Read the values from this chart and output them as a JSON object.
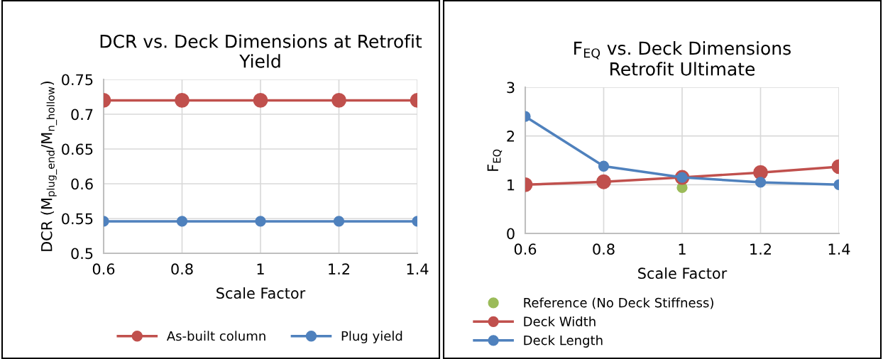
{
  "chart_data": [
    {
      "type": "line",
      "title": "DCR vs. Deck Dimensions at Retrofit\nYield",
      "xlabel": "Scale Factor",
      "ylabel": "DCR (M$_{plug_end}$/M$_{n_hollow}$)",
      "x": [
        0.6,
        0.8,
        1,
        1.2,
        1.4
      ],
      "series": [
        {
          "name": "As-built column",
          "color": "#c0504d",
          "values": [
            0.72,
            0.72,
            0.72,
            0.72,
            0.72
          ]
        },
        {
          "name": "Plug yield",
          "color": "#4f81bd",
          "values": [
            0.546,
            0.546,
            0.546,
            0.546,
            0.546
          ]
        }
      ],
      "xlim": [
        0.6,
        1.4
      ],
      "xticks": [
        0.6,
        0.8,
        1,
        1.2,
        1.4
      ],
      "ylim": [
        0.5,
        0.75
      ],
      "yticks": [
        0.5,
        0.55,
        0.6,
        0.65,
        0.7,
        0.75
      ],
      "grid": true,
      "legend": "bottom",
      "marker": "circle",
      "line_style": "solid"
    },
    {
      "type": "line",
      "title": "F$_{EQ}$ vs. Deck Dimensions\nRetrofit Ultimate",
      "xlabel": "Scale Factor",
      "ylabel": "F$_{EQ}$",
      "x": [
        0.6,
        0.8,
        1,
        1.2,
        1.4
      ],
      "series": [
        {
          "name": "Reference (No Deck Stiffness)",
          "color": "#9bbb59",
          "type": "scatter",
          "x": [
            1
          ],
          "values": [
            0.94
          ]
        },
        {
          "name": "Deck Width",
          "color": "#c0504d",
          "values": [
            1.0,
            1.06,
            1.15,
            1.25,
            1.37
          ]
        },
        {
          "name": "Deck Length",
          "color": "#4f81bd",
          "values": [
            2.4,
            1.38,
            1.15,
            1.05,
            1.0
          ]
        }
      ],
      "xlim": [
        0.6,
        1.4
      ],
      "xticks": [
        0.6,
        0.8,
        1,
        1.2,
        1.4
      ],
      "ylim": [
        0,
        3
      ],
      "yticks": [
        0,
        1,
        2,
        3
      ],
      "grid": true,
      "legend": "bottom",
      "marker": "circle",
      "line_style": "solid"
    }
  ]
}
